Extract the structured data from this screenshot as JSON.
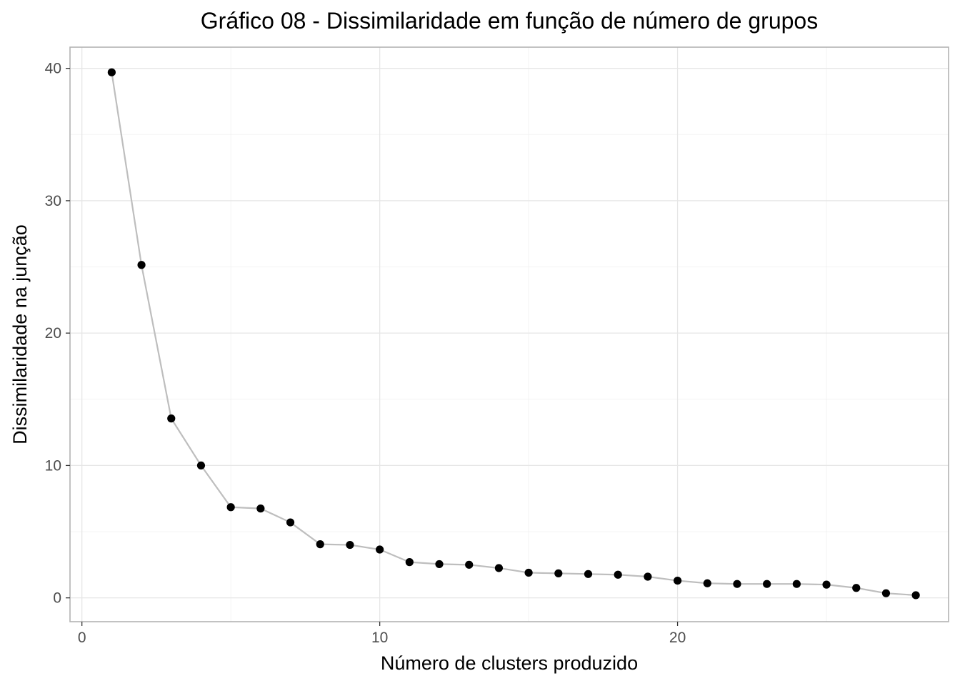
{
  "chart_data": {
    "type": "line",
    "title": "Gráfico 08 - Dissimilaridade em função de número de grupos",
    "xlabel": "Número de clusters produzido",
    "ylabel": "Dissimilaridade na junção",
    "xlim": [
      -0.4,
      29.1
    ],
    "ylim": [
      -1.8,
      41.6
    ],
    "x_ticks": [
      0,
      10,
      20
    ],
    "x_tick_labels": [
      "0",
      "10",
      "20"
    ],
    "x_minor_ticks": [
      5,
      15,
      25
    ],
    "y_ticks": [
      0,
      10,
      20,
      30,
      40
    ],
    "y_tick_labels": [
      "0",
      "10",
      "20",
      "30",
      "40"
    ],
    "y_minor_ticks": [
      5,
      15,
      25,
      35
    ],
    "grid": true,
    "legend": "none",
    "line_color": "#bebebe",
    "point_color": "#000000",
    "series": [
      {
        "x": [
          1,
          2,
          3,
          4,
          5,
          6,
          7,
          8,
          9,
          10,
          11,
          12,
          13,
          14,
          15,
          16,
          17,
          18,
          19,
          20,
          21,
          22,
          23,
          24,
          25,
          26,
          27,
          28
        ],
        "values": [
          39.7,
          25.15,
          13.55,
          10.0,
          6.85,
          6.75,
          5.7,
          4.05,
          4.0,
          3.65,
          2.7,
          2.55,
          2.5,
          2.25,
          1.9,
          1.85,
          1.8,
          1.75,
          1.6,
          1.3,
          1.1,
          1.05,
          1.05,
          1.05,
          1.0,
          0.75,
          0.35,
          0.2
        ]
      }
    ]
  }
}
